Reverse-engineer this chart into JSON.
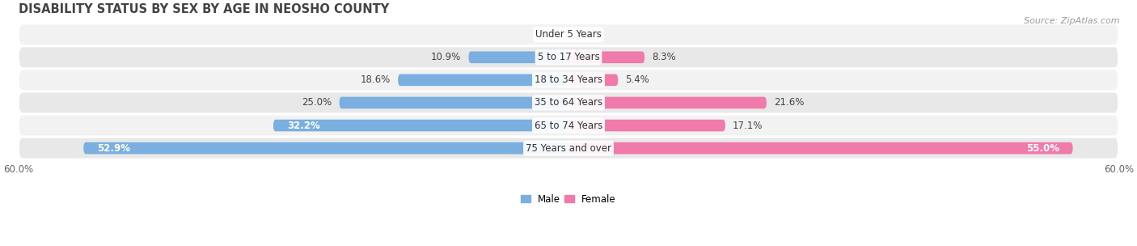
{
  "title": "DISABILITY STATUS BY SEX BY AGE IN NEOSHO COUNTY",
  "source": "Source: ZipAtlas.com",
  "categories": [
    "Under 5 Years",
    "5 to 17 Years",
    "18 to 34 Years",
    "35 to 64 Years",
    "65 to 74 Years",
    "75 Years and over"
  ],
  "male_values": [
    0.0,
    10.9,
    18.6,
    25.0,
    32.2,
    52.9
  ],
  "female_values": [
    0.0,
    8.3,
    5.4,
    21.6,
    17.1,
    55.0
  ],
  "male_color": "#7aafe0",
  "female_color": "#f07aaa",
  "male_color_dark": "#5a9fd4",
  "female_color_dark": "#e05a90",
  "row_bg_light": "#f2f2f2",
  "row_bg_dark": "#e8e8e8",
  "xlim": 60.0,
  "bar_height": 0.52,
  "title_fontsize": 10.5,
  "label_fontsize": 8.5,
  "tick_fontsize": 8.5,
  "source_fontsize": 8,
  "cat_fontsize": 8.5
}
